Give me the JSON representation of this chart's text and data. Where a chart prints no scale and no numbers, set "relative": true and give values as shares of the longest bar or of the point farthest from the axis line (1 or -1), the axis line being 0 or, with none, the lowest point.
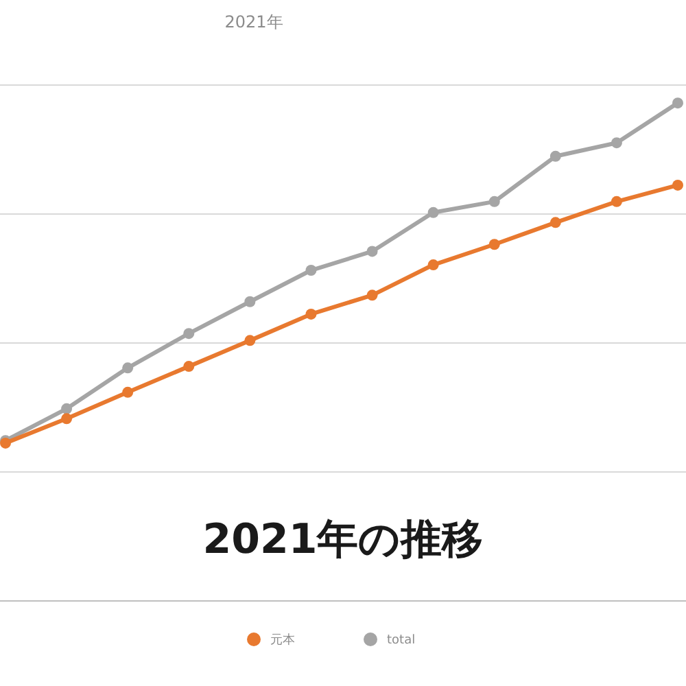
{
  "chart_data": {
    "type": "line",
    "title": "2021年",
    "relative": true,
    "categories": [
      null,
      null,
      null,
      null,
      null,
      null,
      null,
      null,
      null,
      null,
      null,
      null
    ],
    "series": [
      {
        "name": "元本",
        "color": "#e8792f",
        "values": [
          0.317,
          0.366,
          0.419,
          0.471,
          0.523,
          0.576,
          0.614,
          0.675,
          0.716,
          0.76,
          0.802,
          0.835
        ]
      },
      {
        "name": "total",
        "color": "#a5a5a5",
        "values": [
          0.322,
          0.386,
          0.468,
          0.537,
          0.601,
          0.664,
          0.702,
          0.78,
          0.802,
          0.893,
          0.92,
          1
        ]
      }
    ],
    "annotations": [
      "2021年の推移"
    ],
    "grid": true,
    "legend": "bottom",
    "marker": "circle"
  }
}
